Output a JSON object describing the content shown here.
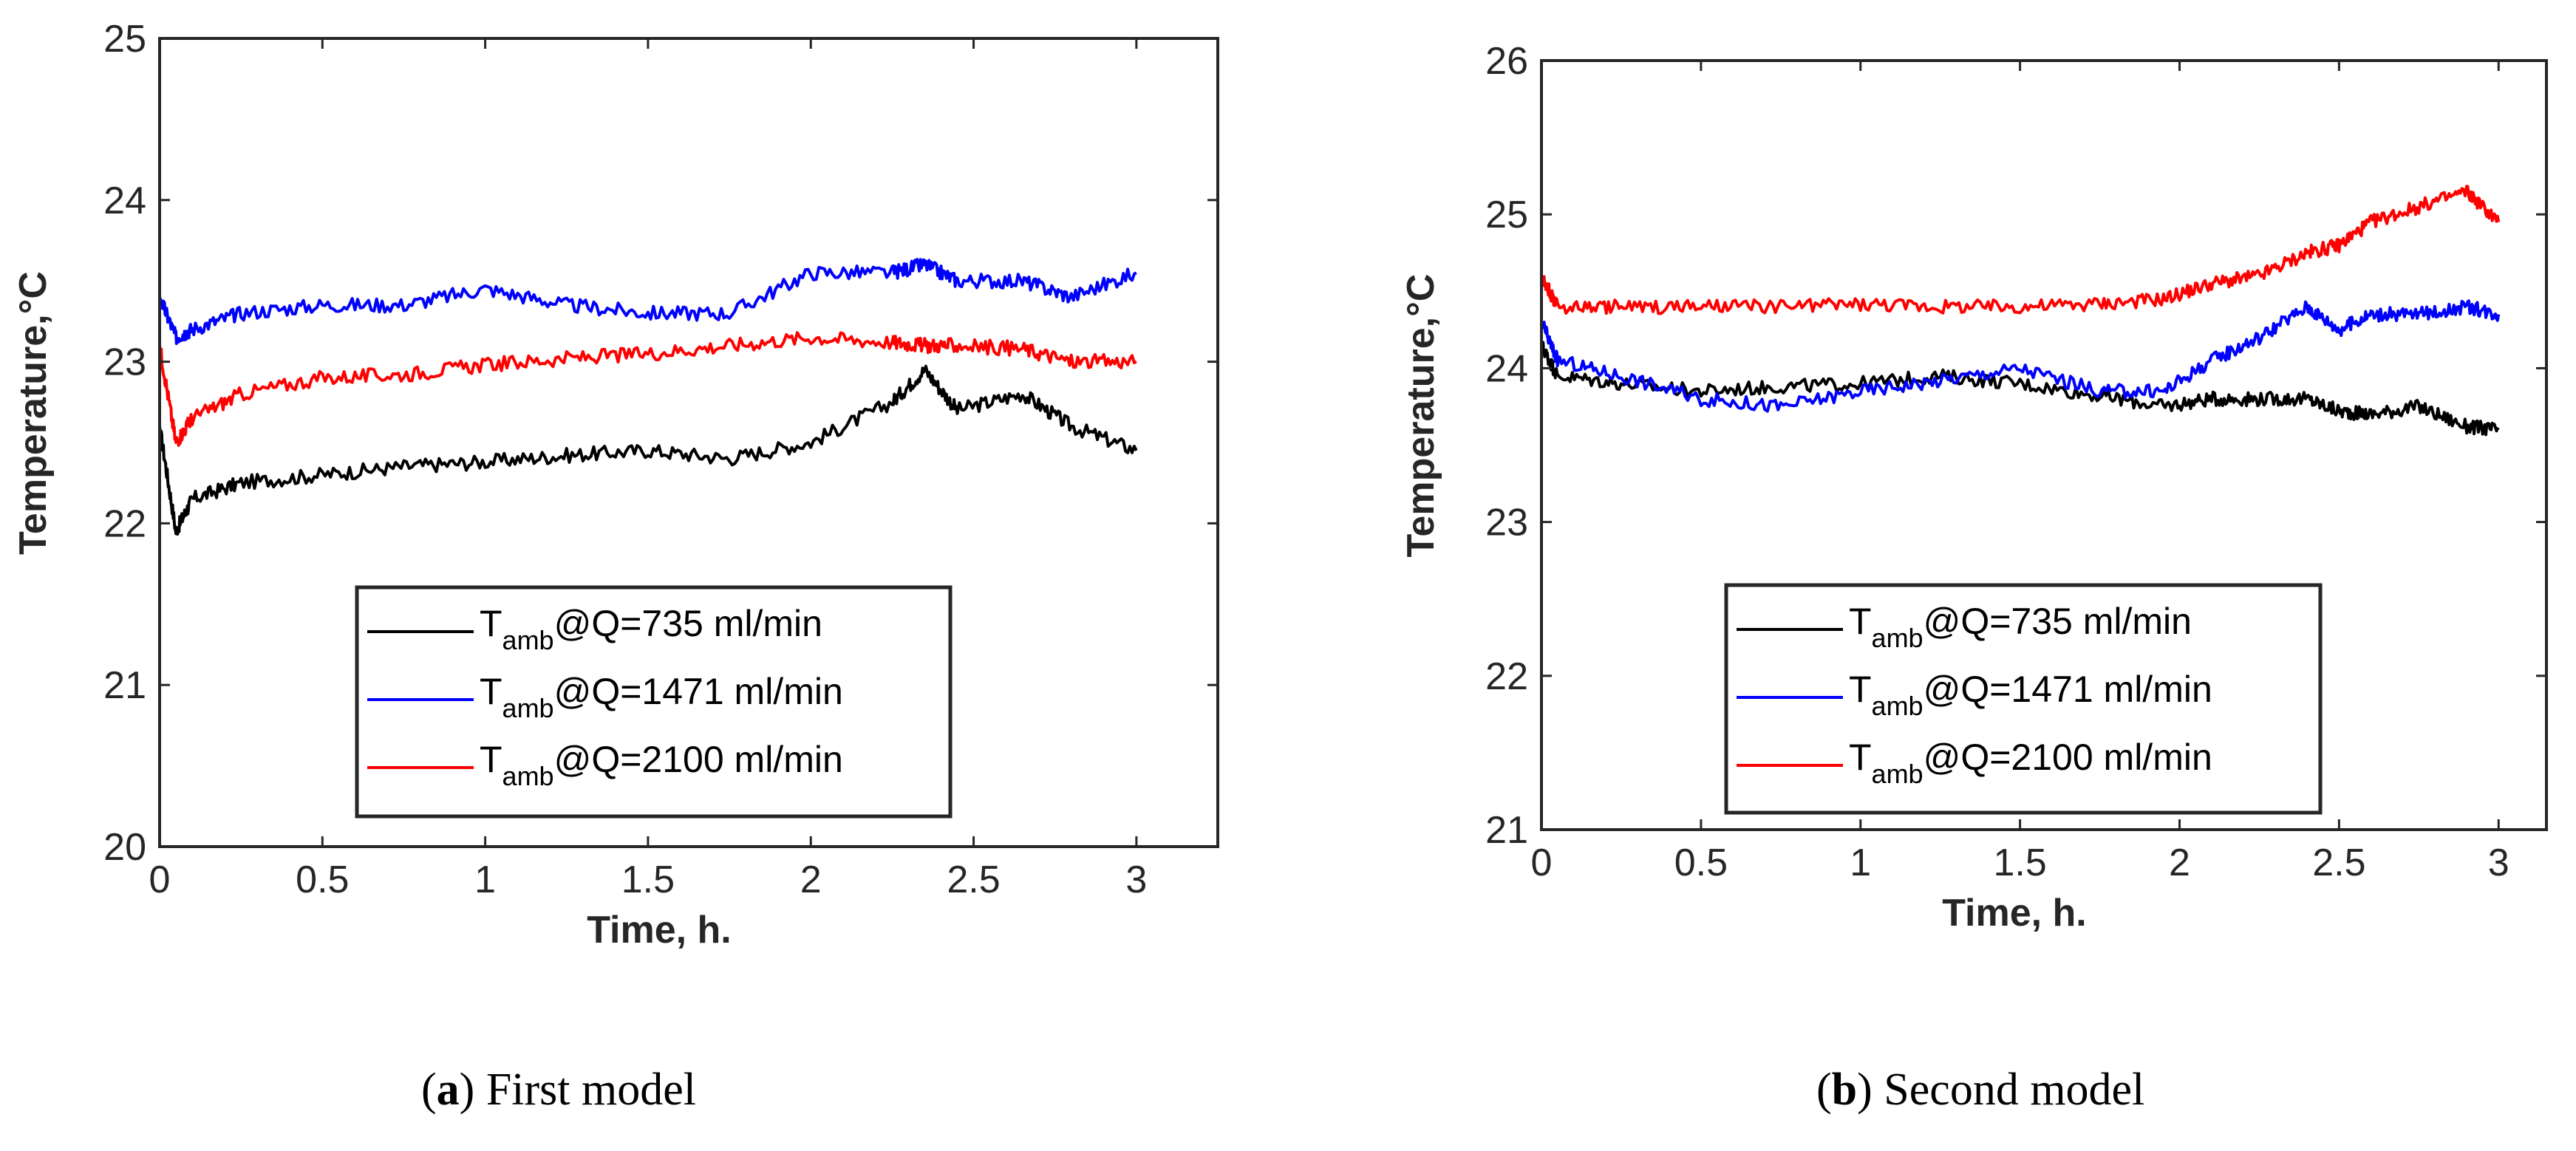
{
  "chart_data": [
    {
      "panel": "a",
      "type": "line",
      "caption_letter": "a",
      "caption_text": "First model",
      "xlabel": "Time, h.",
      "ylabel": "Temperature,°C",
      "xlim": [
        0,
        3.25
      ],
      "ylim": [
        20,
        25
      ],
      "xticks": [
        0,
        0.5,
        1,
        1.5,
        2,
        2.5,
        3
      ],
      "xtick_labels": [
        "0",
        "0.5",
        "1",
        "1.5",
        "2",
        "2.5",
        "3"
      ],
      "yticks": [
        20,
        21,
        22,
        23,
        24,
        25
      ],
      "ytick_labels": [
        "20",
        "21",
        "22",
        "23",
        "24",
        "25"
      ],
      "legend_position": "bottom-center",
      "x": [
        0,
        0.05,
        0.1,
        0.25,
        0.5,
        0.75,
        1,
        1.25,
        1.5,
        1.75,
        2,
        2.25,
        2.35,
        2.45,
        2.65,
        2.8,
        3
      ],
      "series": [
        {
          "name": "T_amb@Q=735 ml/min",
          "label_main": "T",
          "label_sub": "amb",
          "label_rest": "@Q=735 ml/min",
          "color": "#000000",
          "values": [
            22.6,
            21.95,
            22.15,
            22.25,
            22.3,
            22.35,
            22.38,
            22.42,
            22.45,
            22.4,
            22.5,
            22.75,
            22.95,
            22.7,
            22.8,
            22.6,
            22.45
          ]
        },
        {
          "name": "T_amb@Q=1471 ml/min",
          "label_main": "T",
          "label_sub": "amb",
          "label_rest": "@Q=1471 ml/min",
          "color": "#0000ff",
          "values": [
            23.4,
            23.15,
            23.2,
            23.3,
            23.35,
            23.35,
            23.45,
            23.35,
            23.3,
            23.3,
            23.55,
            23.55,
            23.6,
            23.5,
            23.5,
            23.4,
            23.55
          ]
        },
        {
          "name": "T_amb@Q=2100 ml/min",
          "label_main": "T",
          "label_sub": "amb",
          "label_rest": "@Q=2100 ml/min",
          "color": "#ff0000",
          "values": [
            23.1,
            22.5,
            22.65,
            22.8,
            22.9,
            22.92,
            22.98,
            23.02,
            23.05,
            23.1,
            23.15,
            23.12,
            23.1,
            23.1,
            23.08,
            23.0,
            23.0
          ]
        }
      ]
    },
    {
      "panel": "b",
      "type": "line",
      "caption_letter": "b",
      "caption_text": "Second model",
      "xlabel": "Time, h.",
      "ylabel": "Temperature,°C",
      "xlim": [
        0,
        3.15
      ],
      "ylim": [
        21,
        26
      ],
      "xticks": [
        0,
        0.5,
        1,
        1.5,
        2,
        2.5,
        3
      ],
      "xtick_labels": [
        "0",
        "0.5",
        "1",
        "1.5",
        "2",
        "2.5",
        "3"
      ],
      "yticks": [
        21,
        22,
        23,
        24,
        25,
        26
      ],
      "ytick_labels": [
        "21",
        "22",
        "23",
        "24",
        "25",
        "26"
      ],
      "legend_position": "bottom-center",
      "x": [
        0,
        0.05,
        0.25,
        0.5,
        0.75,
        1,
        1.25,
        1.5,
        1.75,
        1.95,
        2.1,
        2.25,
        2.4,
        2.5,
        2.6,
        2.75,
        2.9,
        3
      ],
      "series": [
        {
          "name": "T_amb@Q=735 ml/min",
          "label_main": "T",
          "label_sub": "amb",
          "label_rest": "@Q=735 ml/min",
          "color": "#000000",
          "values": [
            24.15,
            23.95,
            23.9,
            23.85,
            23.88,
            23.9,
            23.95,
            23.9,
            23.82,
            23.75,
            23.8,
            23.8,
            23.8,
            23.72,
            23.7,
            23.75,
            23.62,
            23.6
          ]
        },
        {
          "name": "T_amb@Q=1471 ml/min",
          "label_main": "T",
          "label_sub": "amb",
          "label_rest": "@Q=1471 ml/min",
          "color": "#0000ff",
          "values": [
            24.3,
            24.05,
            23.95,
            23.8,
            23.75,
            23.85,
            23.92,
            24.0,
            23.85,
            23.85,
            24.05,
            24.2,
            24.4,
            24.25,
            24.35,
            24.35,
            24.4,
            24.35
          ]
        },
        {
          "name": "T_amb@Q=2100 ml/min",
          "label_main": "T",
          "label_sub": "amb",
          "label_rest": "@Q=2100 ml/min",
          "color": "#ff0000",
          "values": [
            24.6,
            24.4,
            24.4,
            24.4,
            24.4,
            24.42,
            24.4,
            24.4,
            24.42,
            24.45,
            24.55,
            24.6,
            24.75,
            24.8,
            24.95,
            25.05,
            25.15,
            24.95
          ]
        }
      ]
    }
  ]
}
